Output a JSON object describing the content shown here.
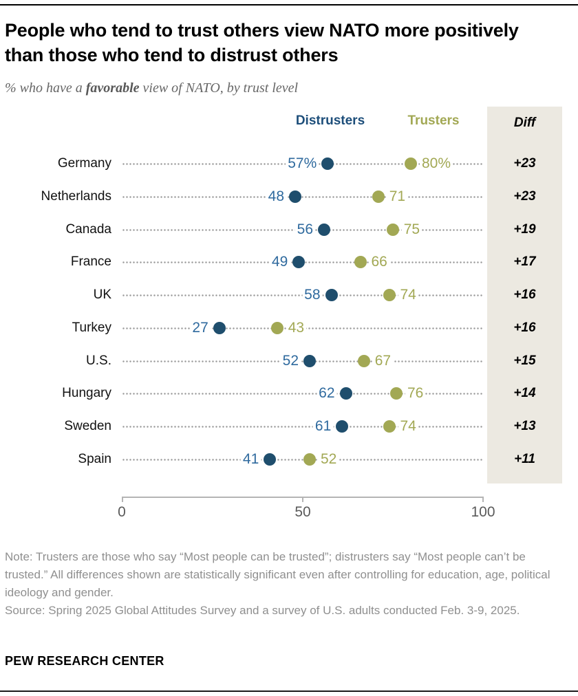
{
  "header": {
    "title": "People who tend to trust others view NATO more positively than those who tend to distrust others",
    "subtitle_prefix": "% who have a ",
    "subtitle_bold": "favorable",
    "subtitle_suffix": " view of NATO, by trust level"
  },
  "legend": {
    "distrusters": "Distrusters",
    "trusters": "Trusters",
    "diff_header": "Diff"
  },
  "colors": {
    "distruster_dot": "#1f4e6d",
    "distruster_text": "#2f6a9e",
    "truster_dot": "#a2a854",
    "truster_text": "#a2a854",
    "diff_column_bg": "#ece9e1"
  },
  "chart_data": {
    "type": "scatter",
    "subtype": "dot-plot",
    "categories": [
      "Germany",
      "Netherlands",
      "Canada",
      "France",
      "UK",
      "Turkey",
      "U.S.",
      "Hungary",
      "Sweden",
      "Spain"
    ],
    "series": [
      {
        "name": "Distrusters",
        "color": "#1f4e6d",
        "values": [
          57,
          48,
          56,
          49,
          58,
          27,
          52,
          62,
          61,
          41
        ],
        "labels": [
          "57%",
          "48",
          "56",
          "49",
          "58",
          "27",
          "52",
          "62",
          "61",
          "41"
        ]
      },
      {
        "name": "Trusters",
        "color": "#a2a854",
        "values": [
          80,
          71,
          75,
          66,
          74,
          43,
          67,
          76,
          74,
          52
        ],
        "labels": [
          "80%",
          "71",
          "75",
          "66",
          "74",
          "43",
          "67",
          "76",
          "74",
          "52"
        ]
      }
    ],
    "diff": [
      "+23",
      "+23",
      "+19",
      "+17",
      "+16",
      "+16",
      "+15",
      "+14",
      "+13",
      "+11"
    ],
    "title": "People who tend to trust others view NATO more positively than those who tend to distrust others",
    "xlabel": "",
    "ylabel": "",
    "xlim": [
      0,
      100
    ],
    "x_ticks": [
      "0",
      "50",
      "100"
    ],
    "grid": false,
    "legend_position": "top"
  },
  "axis": {
    "tick0": "0",
    "tick50": "50",
    "tick100": "100"
  },
  "footer": {
    "note": "Note: Trusters are those who say “Most people can be trusted”; distrusters say “Most people can’t be trusted.” All differences shown are statistically significant even after controlling for education, age, political ideology and gender.",
    "source": "Source: Spring 2025 Global Attitudes Survey and a survey of U.S. adults conducted Feb. 3-9, 2025.",
    "brand": "PEW RESEARCH CENTER"
  }
}
